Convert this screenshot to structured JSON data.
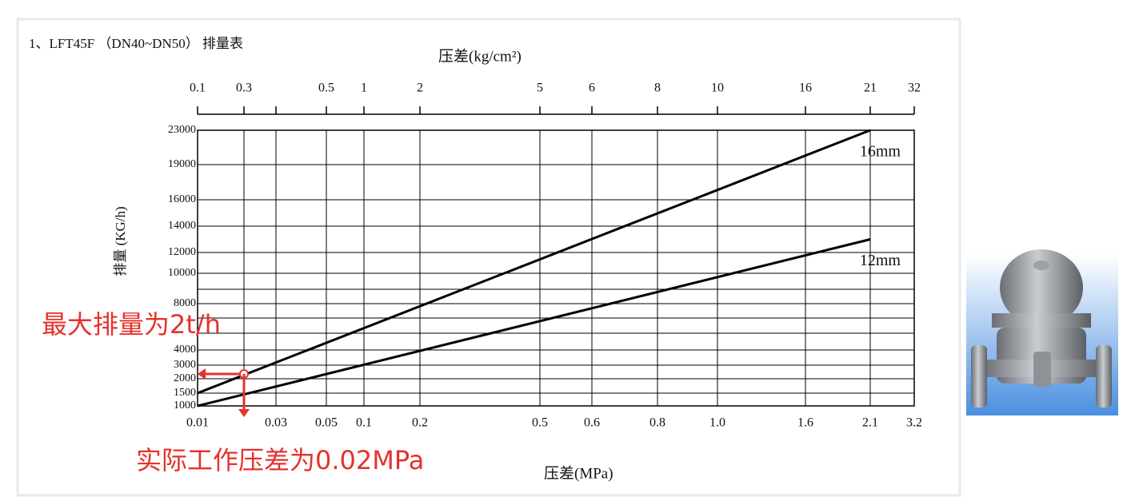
{
  "chart_data": {
    "type": "line",
    "title": "1、LFT45F （DN40~DN50） 排量表",
    "x_label": "压差(MPa)",
    "x2_label": "压差(kg/cm²)",
    "y_label": "排量 (KG/h)",
    "xticks": [
      0.01,
      {
        "value": 0.02,
        "label": null
      },
      0.03,
      0.05,
      0.1,
      0.2,
      0.5,
      0.6,
      0.8,
      {
        "value": 1,
        "label": "1.0"
      },
      1.6,
      2.1,
      3.2
    ],
    "x2ticks": [
      0.1,
      0.3,
      {
        "value": 0.4,
        "label": null
      },
      0.5,
      1,
      2,
      5,
      6,
      8,
      10,
      16,
      21,
      32
    ],
    "yticks": [
      1000,
      1500,
      2000,
      3000,
      4000,
      {
        "value": 5000,
        "label": null
      },
      {
        "value": 6000,
        "label": null
      },
      8000,
      {
        "value": 9000,
        "label": null
      },
      10000,
      12000,
      14000,
      16000,
      19000,
      23000
    ],
    "xlim": [
      0.01,
      3.2
    ],
    "ylim": [
      1000,
      23000
    ],
    "grid": true,
    "series": [
      {
        "name": "16mm",
        "color": "#000000",
        "x": [
          0.01,
          2.1
        ],
        "values": [
          1500,
          23000
        ]
      },
      {
        "name": "12mm",
        "color": "#000000",
        "x": [
          0.01,
          2.1
        ],
        "values": [
          1000,
          13000
        ]
      }
    ],
    "annotations": [
      {
        "text": "最大排量为2t/h",
        "value": 2000,
        "color": "#e5322d"
      },
      {
        "text": "实际工作压差为0.02MPa",
        "x": 0.02,
        "color": "#e5322d"
      }
    ]
  }
}
